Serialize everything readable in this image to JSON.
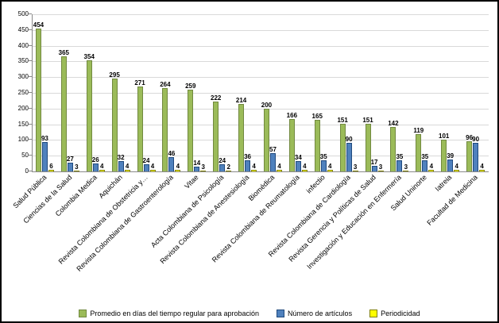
{
  "chart_data": {
    "type": "bar",
    "title": "",
    "categories": [
      "Salud Pública",
      "Ciencias de la Salud",
      "Colombia Medica",
      "Aquichán",
      "Revista Colombiana de Obstetricia y…",
      "Revista Colombiana de Gastroenterología",
      "Vitae",
      "Acta Colombiana de Psicología",
      "Revista Colombiana de Anestesiología",
      "Biomédica",
      "Revista Colombiana de Reumatología",
      "infectio",
      "Revista Colombiana de Cardiología",
      "Revista Gerencia y Políticas de Salud",
      "Investigación y Educación en Enfermería",
      "Salud Uninorte",
      "Iatreia",
      "Facultad de Medicina"
    ],
    "series": [
      {
        "name": "Promedio en días del tiempo regular para aprobación",
        "color": "#9BBB59",
        "border_color": "#71893F",
        "values": [
          454,
          365,
          354,
          295,
          271,
          264,
          259,
          222,
          214,
          200,
          166,
          165,
          151,
          151,
          142,
          119,
          101,
          96
        ]
      },
      {
        "name": "Número de artículos",
        "color": "#4F81BD",
        "border_color": "#1F497D",
        "values": [
          93,
          27,
          26,
          32,
          24,
          46,
          14,
          24,
          36,
          57,
          34,
          35,
          90,
          17,
          35,
          35,
          39,
          90
        ]
      },
      {
        "name": "Periodicidad",
        "color": "#FFFF00",
        "border_color": "#808000",
        "values": [
          6,
          3,
          4,
          4,
          4,
          4,
          3,
          2,
          4,
          4,
          4,
          4,
          3,
          3,
          3,
          4,
          4,
          4
        ]
      }
    ],
    "ylim": [
      0,
      500
    ],
    "ytick_step": 50,
    "grid": true,
    "legend_position": "bottom",
    "axis_color": "#898989",
    "gridline_color": "#D9D9D9",
    "xlabel": "",
    "ylabel": ""
  }
}
